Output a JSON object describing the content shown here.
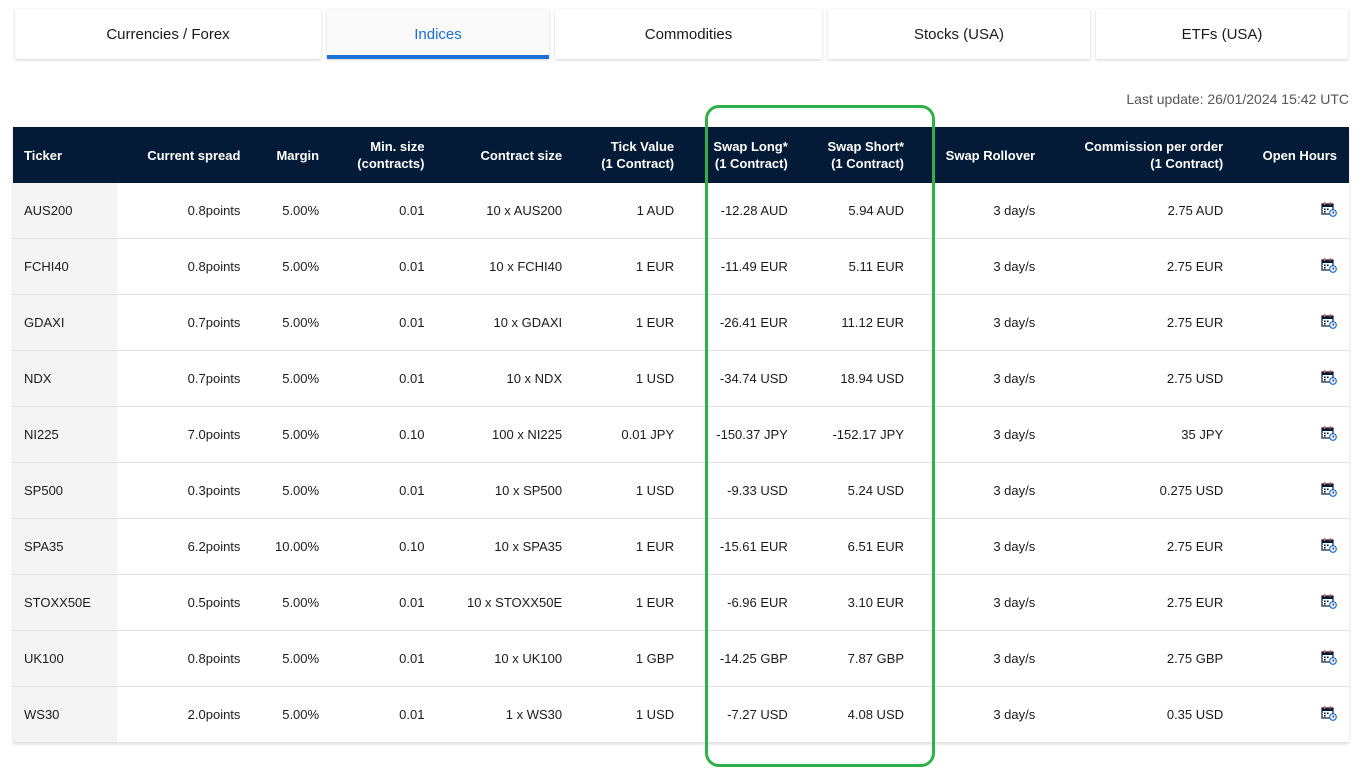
{
  "tabs": [
    {
      "label": "Currencies / Forex",
      "active": false
    },
    {
      "label": "Indices",
      "active": true
    },
    {
      "label": "Commodities",
      "active": false
    },
    {
      "label": "Stocks (USA)",
      "active": false
    },
    {
      "label": "ETFs (USA)",
      "active": false
    }
  ],
  "last_update": "Last update: 26/01/2024 15:42 UTC",
  "colors": {
    "header_bg": "#041b37",
    "accent": "#1a6fd6",
    "highlight": "#2fb04a"
  },
  "columns": [
    "Ticker",
    "Current spread",
    "Margin",
    "Min. size\n(contracts)",
    "Contract size",
    "Tick Value\n(1 Contract)",
    "Swap Long*\n(1 Contract)",
    "Swap Short*\n(1 Contract)",
    "Swap Rollover",
    "Commission per order\n(1 Contract)",
    "Open Hours"
  ],
  "rows": [
    [
      "AUS200",
      "0.8points",
      "5.00%",
      "0.01",
      "10 x AUS200",
      "1 AUD",
      "-12.28 AUD",
      "5.94 AUD",
      "3 day/s",
      "2.75 AUD"
    ],
    [
      "FCHI40",
      "0.8points",
      "5.00%",
      "0.01",
      "10 x FCHI40",
      "1 EUR",
      "-11.49 EUR",
      "5.11 EUR",
      "3 day/s",
      "2.75 EUR"
    ],
    [
      "GDAXI",
      "0.7points",
      "5.00%",
      "0.01",
      "10 x GDAXI",
      "1 EUR",
      "-26.41 EUR",
      "11.12 EUR",
      "3 day/s",
      "2.75 EUR"
    ],
    [
      "NDX",
      "0.7points",
      "5.00%",
      "0.01",
      "10 x NDX",
      "1 USD",
      "-34.74 USD",
      "18.94 USD",
      "3 day/s",
      "2.75 USD"
    ],
    [
      "NI225",
      "7.0points",
      "5.00%",
      "0.10",
      "100 x NI225",
      "0.01 JPY",
      "-150.37 JPY",
      "-152.17 JPY",
      "3 day/s",
      "35 JPY"
    ],
    [
      "SP500",
      "0.3points",
      "5.00%",
      "0.01",
      "10 x SP500",
      "1 USD",
      "-9.33 USD",
      "5.24 USD",
      "3 day/s",
      "0.275 USD"
    ],
    [
      "SPA35",
      "6.2points",
      "10.00%",
      "0.10",
      "10 x SPA35",
      "1 EUR",
      "-15.61 EUR",
      "6.51 EUR",
      "3 day/s",
      "2.75 EUR"
    ],
    [
      "STOXX50E",
      "0.5points",
      "5.00%",
      "0.01",
      "10 x STOXX50E",
      "1 EUR",
      "-6.96 EUR",
      "3.10 EUR",
      "3 day/s",
      "2.75 EUR"
    ],
    [
      "UK100",
      "0.8points",
      "5.00%",
      "0.01",
      "10 x UK100",
      "1 GBP",
      "-14.25 GBP",
      "7.87 GBP",
      "3 day/s",
      "2.75 GBP"
    ],
    [
      "WS30",
      "2.0points",
      "5.00%",
      "0.01",
      "1 x WS30",
      "1 USD",
      "-7.27 USD",
      "4.08 USD",
      "3 day/s",
      "0.35 USD"
    ]
  ]
}
